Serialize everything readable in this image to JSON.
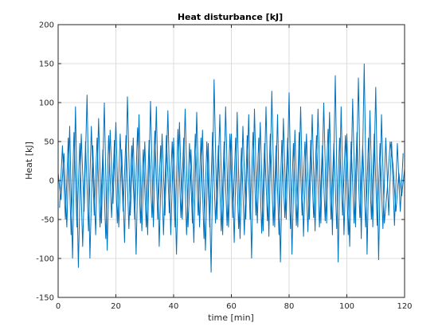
{
  "chart_data": {
    "type": "line",
    "title": "Heat disturbance [kJ]",
    "xlabel": "time [min]",
    "ylabel": "Heat [kJ]",
    "xlim": [
      0,
      120
    ],
    "ylim": [
      -150,
      200
    ],
    "xticks": [
      "0",
      "20",
      "40",
      "60",
      "80",
      "100",
      "120"
    ],
    "yticks": [
      "200",
      "150",
      "100",
      "50",
      "0",
      "-50",
      "-100",
      "-150"
    ],
    "grid": true,
    "series_color": "#0072BD",
    "series": [
      {
        "x": [
          0,
          1,
          2,
          3,
          4,
          5,
          6,
          7,
          8,
          9,
          10,
          11,
          12,
          13,
          14,
          15,
          16,
          17,
          18,
          19,
          20,
          21,
          22,
          23,
          24,
          25,
          26,
          27,
          28,
          29,
          30,
          31,
          32,
          33,
          34,
          35,
          36,
          37,
          38,
          39,
          40,
          41,
          42,
          43,
          44,
          45,
          46,
          47,
          48,
          49,
          50,
          51,
          52,
          53,
          54,
          55,
          56,
          57,
          58,
          59,
          60,
          61,
          62,
          63,
          64,
          65,
          66,
          67,
          68,
          69,
          70,
          71,
          72,
          73,
          74,
          75,
          76,
          77,
          78,
          79,
          80,
          81,
          82,
          83,
          84,
          85,
          86,
          87,
          88,
          89,
          90,
          91,
          92,
          93,
          94,
          95,
          96,
          97,
          98,
          99,
          100,
          101,
          102,
          103,
          104,
          105,
          106,
          107,
          108,
          109,
          110,
          111,
          112,
          113,
          114,
          115,
          116,
          117,
          118,
          119,
          120
        ],
        "y": [
          10,
          -25,
          35,
          -60,
          70,
          -100,
          95,
          -112,
          60,
          -40,
          110,
          -100,
          45,
          -70,
          80,
          -55,
          100,
          -90,
          65,
          -30,
          75,
          -60,
          40,
          -80,
          108,
          -45,
          55,
          -95,
          85,
          -65,
          50,
          -70,
          102,
          -60,
          95,
          -85,
          60,
          -45,
          90,
          -70,
          55,
          -95,
          75,
          -50,
          92,
          -60,
          40,
          -80,
          88,
          -60,
          65,
          -90,
          48,
          -118,
          130,
          -50,
          85,
          -70,
          95,
          -60,
          60,
          -80,
          88,
          -75,
          70,
          -50,
          85,
          -100,
          92,
          -55,
          75,
          -65,
          95,
          -72,
          115,
          -60,
          85,
          -105,
          80,
          -50,
          113,
          -95,
          65,
          -60,
          95,
          -72,
          60,
          -50,
          85,
          -65,
          92,
          -55,
          100,
          -55,
          88,
          -70,
          135,
          -105,
          95,
          -70,
          60,
          -85,
          105,
          -60,
          132,
          -75,
          150,
          -95,
          90,
          -60,
          120,
          -102,
          85,
          -55,
          -10,
          50,
          20,
          -40,
          10,
          -20,
          15
        ]
      },
      {
        "x": [
          0.5,
          1.5,
          2.5,
          3.5,
          4.5,
          5.5,
          6.5,
          7.5,
          8.5,
          9.5,
          10.5,
          11.5,
          12.5,
          13.5,
          14.5,
          15.5,
          16.5,
          17.5,
          18.5,
          19.5,
          20.5,
          21.5,
          22.5,
          23.5,
          24.5,
          25.5,
          26.5,
          27.5,
          28.5,
          29.5,
          30.5,
          31.5,
          32.5,
          33.5,
          34.5,
          35.5,
          36.5,
          37.5,
          38.5,
          39.5,
          40.5,
          41.5,
          42.5,
          43.5,
          44.5,
          45.5,
          46.5,
          47.5,
          48.5,
          49.5,
          50.5,
          51.5,
          52.5,
          53.5,
          54.5,
          55.5,
          56.5,
          57.5,
          58.5,
          59.5,
          60.5,
          61.5,
          62.5,
          63.5,
          64.5,
          65.5,
          66.5,
          67.5,
          68.5,
          69.5,
          70.5,
          71.5,
          72.5,
          73.5,
          74.5,
          75.5,
          76.5,
          77.5,
          78.5,
          79.5,
          80.5,
          81.5,
          82.5,
          83.5,
          84.5,
          85.5,
          86.5,
          87.5,
          88.5,
          89.5,
          90.5,
          91.5,
          92.5,
          93.5,
          94.5,
          95.5,
          96.5,
          97.5,
          98.5,
          99.5,
          100.5,
          101.5,
          102.5,
          103.5,
          104.5,
          105.5,
          106.5,
          107.5,
          108.5,
          109.5,
          110.5,
          111.5,
          112.5,
          113.5,
          114.5,
          115.5,
          116.5,
          117.5,
          118.5,
          119.5
        ],
        "y": [
          -35,
          45,
          -50,
          55,
          -70,
          62,
          -60,
          48,
          -85,
          50,
          -65,
          70,
          -45,
          55,
          -60,
          40,
          -75,
          58,
          -48,
          52,
          -55,
          60,
          -40,
          58,
          -62,
          45,
          -50,
          68,
          -55,
          40,
          -60,
          52,
          -48,
          64,
          -50,
          45,
          -70,
          58,
          -42,
          50,
          -60,
          66,
          -48,
          55,
          -70,
          48,
          -55,
          60,
          -45,
          55,
          -75,
          50,
          -60,
          62,
          -55,
          45,
          -65,
          50,
          -58,
          60,
          -48,
          55,
          -62,
          42,
          -70,
          58,
          -50,
          62,
          -45,
          55,
          -68,
          48,
          -52,
          60,
          -58,
          45,
          -70,
          52,
          -48,
          55,
          -62,
          48,
          -58,
          62,
          -45,
          50,
          -66,
          52,
          -48,
          58,
          -60,
          45,
          -52,
          66,
          -50,
          48,
          -62,
          55,
          -45,
          58,
          -70,
          50,
          -55,
          62,
          -48,
          45,
          -60,
          55,
          -50,
          60,
          -58,
          48,
          -62,
          55,
          -45,
          50,
          -58,
          48,
          -40,
          35
        ]
      }
    ]
  }
}
